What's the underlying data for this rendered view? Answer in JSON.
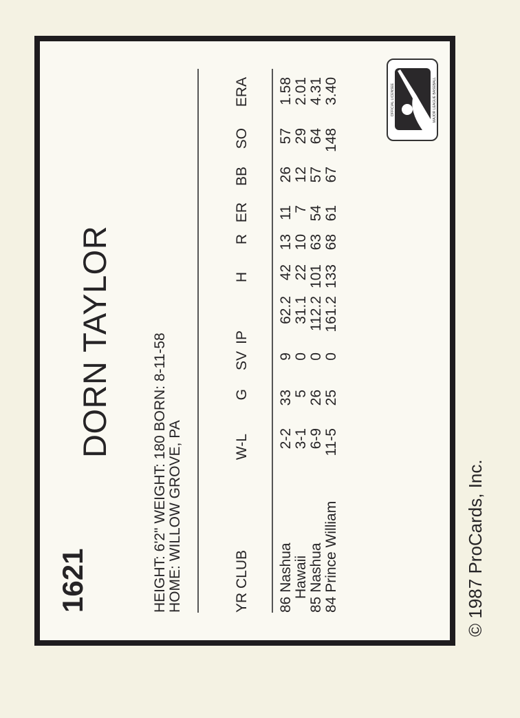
{
  "card_number": "1621",
  "player_name": "DORN TAYLOR",
  "bio": {
    "line1": "HEIGHT: 6'2\"   WEIGHT: 180   BORN: 8-11-58",
    "line2": "HOME: WILLOW GROVE, PA"
  },
  "stats": {
    "headers": [
      "YR CLUB",
      "W-L",
      "G",
      "SV",
      "IP",
      "H",
      "R",
      "ER",
      "BB",
      "SO",
      "ERA"
    ],
    "rows": [
      {
        "club": "86 Nashua",
        "wl": "2-2",
        "g": "33",
        "sv": "9",
        "ip": "62.2",
        "h": "42",
        "r": "13",
        "er": "11",
        "bb": "26",
        "so": "57",
        "era": "1.58"
      },
      {
        "club": "Hawaii",
        "wl": "3-1",
        "g": "5",
        "sv": "0",
        "ip": "31.1",
        "h": "22",
        "r": "10",
        "er": "7",
        "bb": "12",
        "so": "29",
        "era": "2.01"
      },
      {
        "club": "85 Nashua",
        "wl": "6-9",
        "g": "26",
        "sv": "0",
        "ip": "112.2",
        "h": "101",
        "r": "63",
        "er": "54",
        "bb": "57",
        "so": "64",
        "era": "4.31"
      },
      {
        "club": "84 Prince William",
        "wl": "11-5",
        "g": "25",
        "sv": "0",
        "ip": "161.2",
        "h": "133",
        "r": "68",
        "er": "61",
        "bb": "67",
        "so": "148",
        "era": "3.40"
      }
    ]
  },
  "copyright": "© 1987 ProCards, Inc.",
  "logo": {
    "top_text": "OFFICIAL LICENSEE",
    "bottom_text": "MAJOR LEAGUE BASEBALL",
    "colors": {
      "field": "#2a282a",
      "silhouette": "#ffffff"
    }
  }
}
